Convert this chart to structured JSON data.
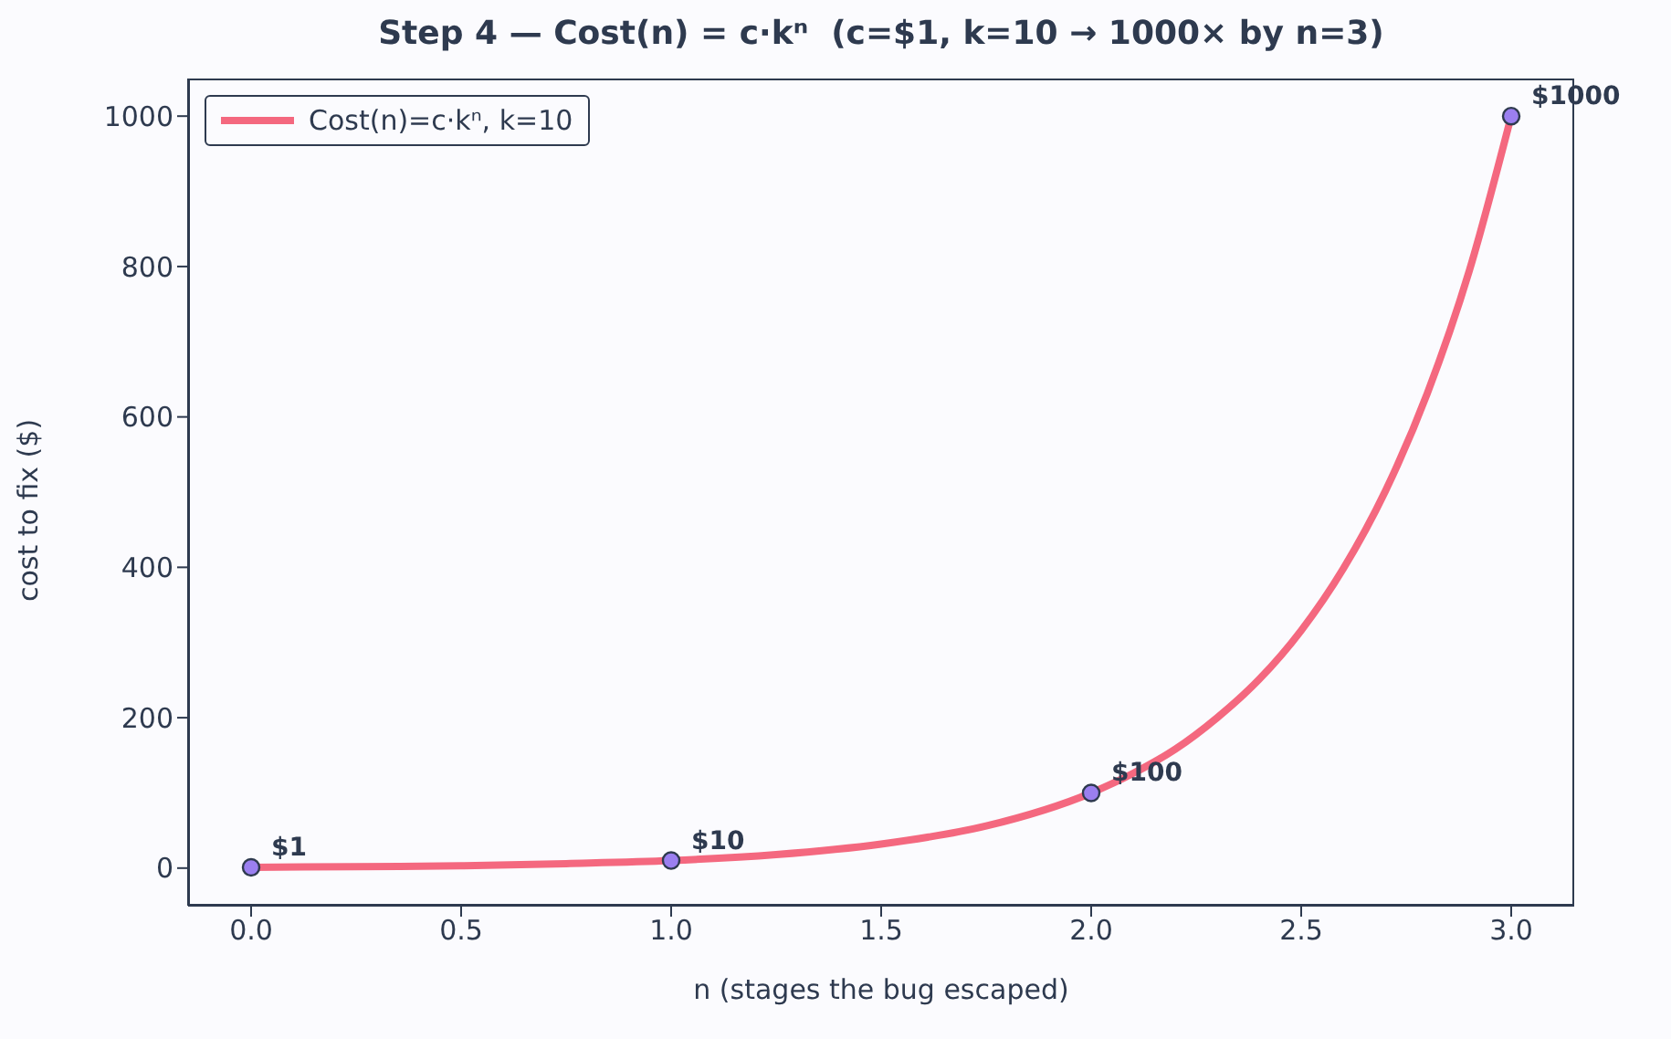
{
  "chart_data": {
    "type": "line",
    "title": "Step 4 — Cost(n) = c·kⁿ  (c=$1, k=10 → 1000× by n=3)",
    "xlabel": "n  (stages the bug escaped)",
    "ylabel": "cost to fix  ($)",
    "series": [
      {
        "name": "Cost(n)=c·kⁿ, k=10",
        "color": "#f4687f",
        "x": [
          0,
          0.25,
          0.5,
          0.75,
          1,
          1.25,
          1.5,
          1.75,
          2,
          2.1,
          2.2,
          2.3,
          2.4,
          2.5,
          2.6,
          2.7,
          2.8,
          2.9,
          3
        ],
        "values": [
          1,
          2,
          3,
          6,
          10,
          18,
          32,
          56,
          100,
          126,
          158,
          200,
          251,
          316,
          398,
          501,
          631,
          794,
          1000
        ]
      },
      {
        "type": "scatter",
        "color": "#9b7ff0",
        "marker": "circle",
        "x": [
          0,
          1,
          2,
          3
        ],
        "values": [
          1,
          10,
          100,
          1000
        ],
        "value_labels": [
          "$1",
          "$10",
          "$100",
          "$1000"
        ]
      }
    ],
    "xlim": [
      -0.15,
      3.15
    ],
    "xticks": [
      {
        "value": 0,
        "label": "0.0"
      },
      {
        "value": 0.5,
        "label": "0.5"
      },
      {
        "value": 1,
        "label": "1.0"
      },
      {
        "value": 1.5,
        "label": "1.5"
      },
      {
        "value": 2,
        "label": "2.0"
      },
      {
        "value": 2.5,
        "label": "2.5"
      },
      {
        "value": 3,
        "label": "3.0"
      }
    ],
    "ylim": [
      -50,
      1050
    ],
    "yticks": [
      0,
      200,
      400,
      600,
      800,
      1000
    ],
    "grid": false,
    "legend": "top left"
  }
}
